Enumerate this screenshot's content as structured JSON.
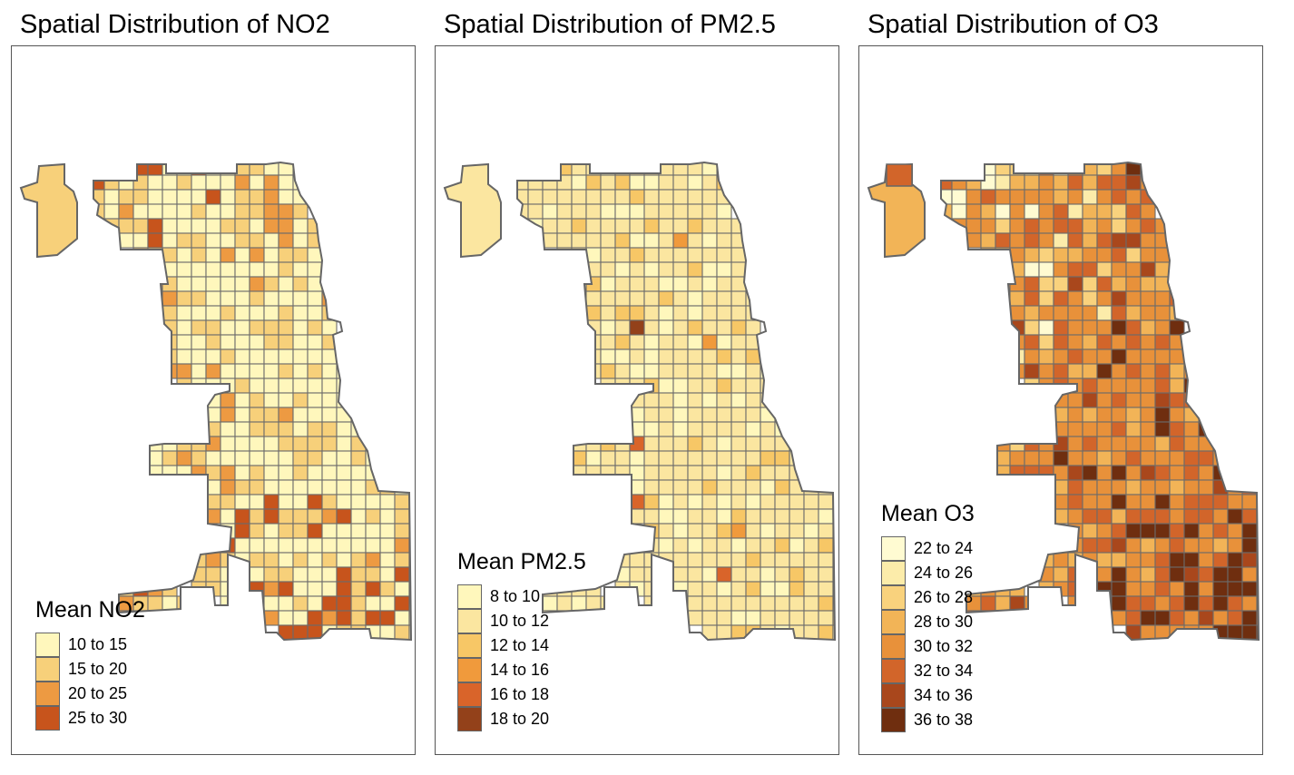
{
  "panels": [
    {
      "title": "Spatial Distribution of NO2",
      "legend_title": "Mean NO2",
      "classes": [
        {
          "label": "10 to 15",
          "color": "#fff7bc"
        },
        {
          "label": "15 to 20",
          "color": "#f7d07a"
        },
        {
          "label": "20 to 25",
          "color": "#ed9a42"
        },
        {
          "label": "25 to 30",
          "color": "#c7541c"
        }
      ],
      "palette_weights": [
        0.52,
        0.36,
        0.1,
        0.02
      ]
    },
    {
      "title": "Spatial Distribution of PM2.5",
      "legend_title": "Mean PM2.5",
      "classes": [
        {
          "label": "8 to 10",
          "color": "#fff7bc"
        },
        {
          "label": "10 to 12",
          "color": "#fbe6a0"
        },
        {
          "label": "12 to 14",
          "color": "#f7c766"
        },
        {
          "label": "14 to 16",
          "color": "#f09a3c"
        },
        {
          "label": "16 to 18",
          "color": "#d9642a"
        },
        {
          "label": "18 to 20",
          "color": "#93411a"
        }
      ],
      "palette_weights": [
        0.18,
        0.68,
        0.12,
        0.015,
        0.004,
        0.001
      ]
    },
    {
      "title": "Spatial Distribution of O3",
      "legend_title": "Mean O3",
      "classes": [
        {
          "label": "22 to 24",
          "color": "#fffbd2"
        },
        {
          "label": "24 to 26",
          "color": "#fcecaa"
        },
        {
          "label": "26 to 28",
          "color": "#f9d27d"
        },
        {
          "label": "28 to 30",
          "color": "#f2b457"
        },
        {
          "label": "30 to 32",
          "color": "#e8913a"
        },
        {
          "label": "32 to 34",
          "color": "#d2652a"
        },
        {
          "label": "34 to 36",
          "color": "#a9471c"
        },
        {
          "label": "36 to 38",
          "color": "#6f2e0f"
        }
      ],
      "palette_weights": [
        0.03,
        0.05,
        0.08,
        0.18,
        0.38,
        0.22,
        0.05,
        0.01
      ]
    }
  ]
}
